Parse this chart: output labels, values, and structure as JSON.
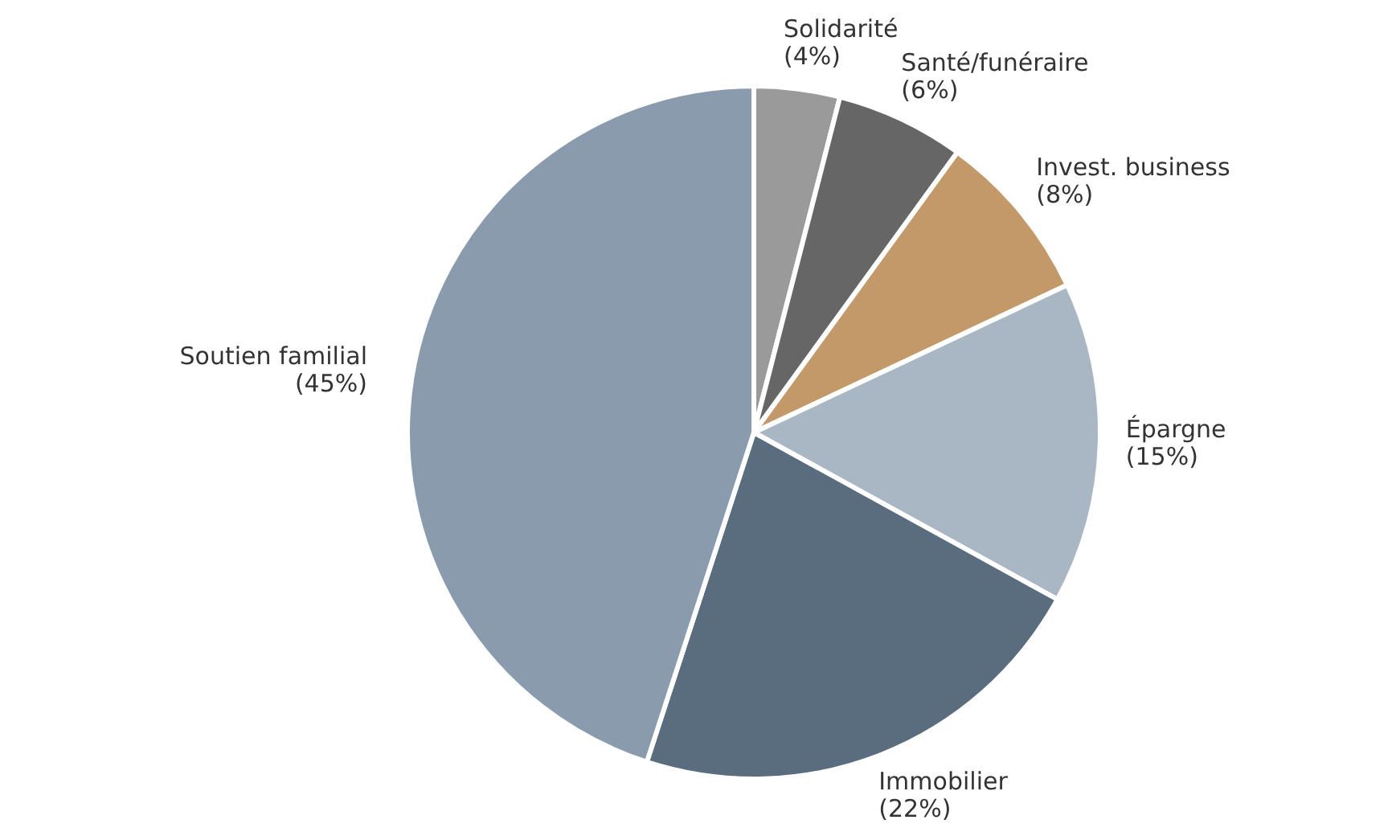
{
  "chart_data": {
    "type": "pie",
    "categories": [
      "Solidarité",
      "Santé/funéraire",
      "Invest. business",
      "Épargne",
      "Immobilier",
      "Soutien familial"
    ],
    "values": [
      4,
      6,
      8,
      15,
      22,
      45
    ],
    "value_labels": [
      "(4%)",
      "(6%)",
      "(8%)",
      "(15%)",
      "(22%)",
      "(45%)"
    ],
    "colors": [
      "#9a9a9a",
      "#666666",
      "#c4996a",
      "#a9b6c3",
      "#5a6d7f",
      "#8a9bad"
    ],
    "legend": false
  }
}
